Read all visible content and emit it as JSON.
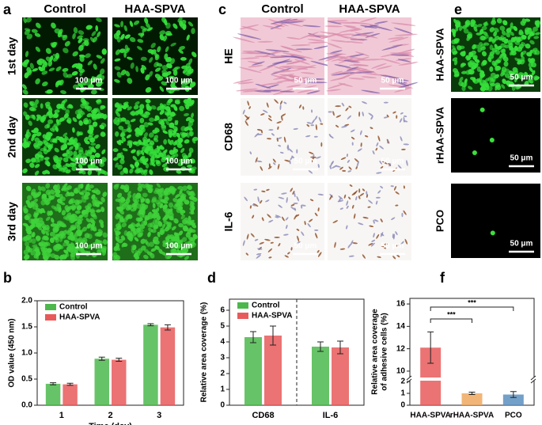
{
  "image_panels": [
    {
      "label": "a",
      "columns": [
        "Control",
        "HAA-SPVA"
      ],
      "rows": [
        "1st day",
        "2nd day",
        "3rd day"
      ],
      "scale_bar": "100 μm"
    },
    {
      "label": "c",
      "columns": [
        "Control",
        "HAA-SPVA"
      ],
      "rows": [
        "HE",
        "CD68",
        "IL-6"
      ],
      "scale_bar": "50 μm"
    },
    {
      "label": "e",
      "rows": [
        "HAA-SPVA",
        "rHAA-SPVA",
        "PCO"
      ],
      "scale_bar": "50 μm"
    }
  ],
  "chart_data": [
    {
      "type": "bar",
      "label": "b",
      "ylabel": "OD value (450 nm)",
      "xlabel": "Time (day)",
      "categories": [
        "1",
        "2",
        "3"
      ],
      "series": [
        {
          "name": "Control",
          "color": "#4cb84c",
          "values": [
            0.41,
            0.89,
            1.54
          ],
          "errors": [
            0.02,
            0.03,
            0.02
          ]
        },
        {
          "name": "HAA-SPVA",
          "color": "#e85a5a",
          "values": [
            0.4,
            0.87,
            1.49
          ],
          "errors": [
            0.02,
            0.03,
            0.05
          ]
        }
      ],
      "ylim": [
        0,
        2.0
      ],
      "yticks": [
        {
          "value": 0,
          "label": "0.0"
        },
        {
          "value": 0.5,
          "label": "0.5"
        },
        {
          "value": 1,
          "label": "1.0"
        },
        {
          "value": 1.5,
          "label": "1.5"
        },
        {
          "value": 2,
          "label": "2.0"
        }
      ],
      "legend": "upper left"
    },
    {
      "type": "bar",
      "label": "d",
      "ylabel": "Relative area coverage (%)",
      "categories": [
        "CD68",
        "IL-6"
      ],
      "series": [
        {
          "name": "Control",
          "color": "#4cb84c",
          "values": [
            4.3,
            3.7
          ],
          "errors": [
            0.35,
            0.3
          ]
        },
        {
          "name": "HAA-SPVA",
          "color": "#e85a5a",
          "values": [
            4.4,
            3.65
          ],
          "errors": [
            0.6,
            0.4
          ]
        }
      ],
      "ylim": [
        0,
        6.7
      ],
      "yticks": [
        0,
        1,
        2,
        3,
        4,
        5,
        6
      ],
      "legend": "upper left",
      "divider": true
    },
    {
      "type": "broken_bar",
      "label": "f",
      "ylabel": [
        "Relative area coverage",
        "of adhesive cells (%)"
      ],
      "categories": [
        "HAA-SPVA",
        "rHAA-SPVA",
        "PCO"
      ],
      "values": [
        12.1,
        1.0,
        0.9
      ],
      "errors": [
        1.4,
        0.1,
        0.25
      ],
      "colors": [
        "#e85a5a",
        "#f0a860",
        "#5b8fc0"
      ],
      "ylim": [
        0,
        16.5
      ],
      "ybreak": [
        2,
        9.5
      ],
      "yticks": [
        0,
        1,
        2,
        10,
        12,
        14,
        16
      ],
      "annotations": [
        "***",
        "***"
      ]
    }
  ]
}
